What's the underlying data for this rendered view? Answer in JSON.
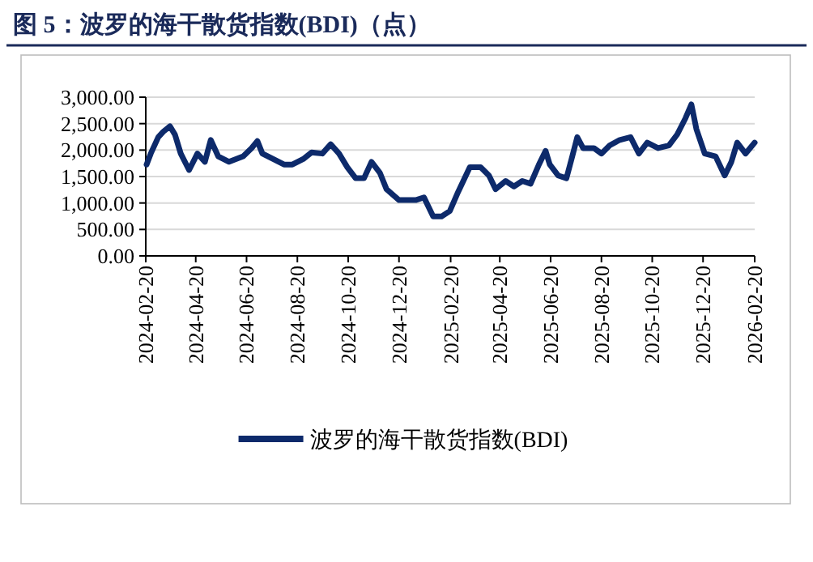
{
  "chart_data": {
    "type": "line",
    "title": "图 5：波罗的海干散货指数(BDI)（点）",
    "x": [
      "2024-02-21",
      "2024-02-26",
      "2024-03-06",
      "2024-03-12",
      "2024-03-20",
      "2024-03-26",
      "2024-04-02",
      "2024-04-12",
      "2024-04-22",
      "2024-05-01",
      "2024-05-08",
      "2024-05-17",
      "2024-05-30",
      "2024-06-16",
      "2024-06-26",
      "2024-07-03",
      "2024-07-09",
      "2024-07-22",
      "2024-08-04",
      "2024-08-14",
      "2024-08-27",
      "2024-09-06",
      "2024-09-19",
      "2024-09-29",
      "2024-10-09",
      "2024-10-19",
      "2024-10-29",
      "2024-11-08",
      "2024-11-17",
      "2024-11-27",
      "2024-12-05",
      "2024-12-20",
      "2025-01-09",
      "2025-01-19",
      "2025-01-30",
      "2025-02-09",
      "2025-02-19",
      "2025-03-01",
      "2025-03-15",
      "2025-03-28",
      "2025-04-07",
      "2025-04-15",
      "2025-04-27",
      "2025-05-07",
      "2025-05-17",
      "2025-05-27",
      "2025-06-06",
      "2025-06-14",
      "2025-06-19",
      "2025-06-29",
      "2025-07-09",
      "2025-07-16",
      "2025-07-22",
      "2025-07-29",
      "2025-08-11",
      "2025-08-20",
      "2025-08-30",
      "2025-09-11",
      "2025-09-24",
      "2025-10-04",
      "2025-10-14",
      "2025-10-27",
      "2025-11-09",
      "2025-11-19",
      "2025-11-29",
      "2025-12-06",
      "2025-12-12",
      "2025-12-22",
      "2026-01-04",
      "2026-01-15",
      "2026-01-23",
      "2026-01-30",
      "2026-02-09",
      "2026-02-20"
    ],
    "series": [
      {
        "name": "波罗的海干散货指数(BDI)",
        "color": "#0d2a6b",
        "values": [
          1727,
          1934,
          2244,
          2347,
          2450,
          2295,
          1934,
          1623,
          1934,
          1778,
          2192,
          1882,
          1778,
          1882,
          2037,
          2172,
          1934,
          1830,
          1727,
          1727,
          1830,
          1954,
          1934,
          2110,
          1934,
          1675,
          1468,
          1468,
          1778,
          1572,
          1261,
          1055,
          1055,
          1106,
          745,
          745,
          848,
          1210,
          1675,
          1675,
          1520,
          1261,
          1416,
          1313,
          1416,
          1365,
          1727,
          1985,
          1727,
          1520,
          1468,
          1882,
          2244,
          2037,
          2037,
          1934,
          2089,
          2192,
          2244,
          1934,
          2141,
          2037,
          2089,
          2296,
          2606,
          2864,
          2399,
          1934,
          1882,
          1520,
          1778,
          2141,
          1934,
          2141
        ]
      }
    ],
    "xlim": [
      "2024-02-20",
      "2026-02-20"
    ],
    "xticks": [
      "2024-02-20",
      "2024-04-20",
      "2024-06-20",
      "2024-08-20",
      "2024-10-20",
      "2024-12-20",
      "2025-02-20",
      "2025-04-20",
      "2025-06-20",
      "2025-08-20",
      "2025-10-20",
      "2025-12-20",
      "2026-02-20"
    ],
    "ylim": [
      0,
      3000
    ],
    "yticks": [
      {
        "value": 0,
        "label": "0.00"
      },
      {
        "value": 500,
        "label": "500.00"
      },
      {
        "value": 1000,
        "label": "1,000.00"
      },
      {
        "value": 1500,
        "label": "1,500.00"
      },
      {
        "value": 2000,
        "label": "2,000.00"
      },
      {
        "value": 2500,
        "label": "2,500.00"
      },
      {
        "value": 3000,
        "label": "3,000.00"
      }
    ],
    "grid": "y",
    "legend": "bottom",
    "marker": "none",
    "line_style": "solid"
  }
}
